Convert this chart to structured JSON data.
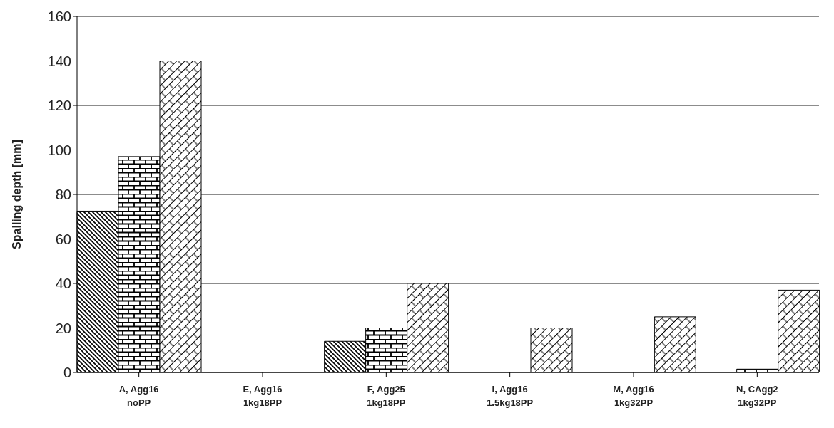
{
  "chart_data": {
    "type": "bar",
    "ylabel": "Spalling depth [mm]",
    "categories": [
      "A,  Agg16\nnoPP",
      "E, Agg16\n1kg18PP",
      "F, Agg25\n1kg18PP",
      "I,  Agg16\n1.5kg18PP",
      "M, Agg16\n1kg32PP",
      "N, CAgg2\n1kg32PP"
    ],
    "series": [
      {
        "color": "#000000",
        "values": [
          72.5,
          0,
          14,
          0,
          null,
          null
        ]
      },
      {
        "color": "#000000",
        "values": [
          97,
          0,
          20,
          0,
          null,
          1.5
        ]
      },
      {
        "color": "#000000",
        "values": [
          140,
          0,
          40,
          20,
          25,
          37
        ]
      }
    ],
    "ylim": [
      0,
      160
    ],
    "yticks": [
      0,
      20,
      40,
      60,
      80,
      100,
      120,
      140,
      160
    ],
    "grid": "y"
  }
}
